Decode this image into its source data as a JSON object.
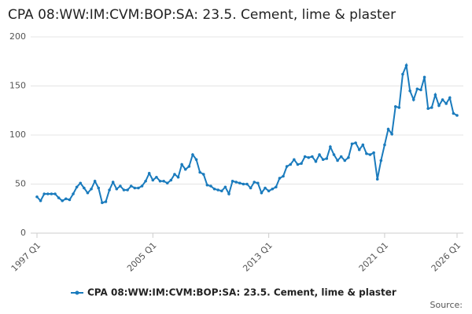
{
  "chart_data": {
    "type": "line",
    "title": "CPA 08:WW:IM:CVM:BOP:SA: 23.5. Cement, lime & plaster",
    "source": "Source:",
    "categories": [
      "1997 Q1",
      null,
      null,
      null,
      null,
      null,
      null,
      null,
      null,
      null,
      null,
      null,
      null,
      null,
      null,
      null,
      null,
      null,
      null,
      null,
      null,
      null,
      null,
      null,
      null,
      null,
      null,
      null,
      null,
      null,
      null,
      null,
      "2005 Q1",
      null,
      null,
      null,
      null,
      null,
      null,
      null,
      null,
      null,
      null,
      null,
      null,
      null,
      null,
      null,
      null,
      null,
      null,
      null,
      null,
      null,
      null,
      null,
      null,
      null,
      null,
      null,
      null,
      null,
      null,
      null,
      "2013 Q1",
      null,
      null,
      null,
      null,
      null,
      null,
      null,
      null,
      null,
      null,
      null,
      null,
      null,
      null,
      null,
      null,
      null,
      null,
      null,
      null,
      null,
      null,
      null,
      null,
      null,
      null,
      null,
      null,
      null,
      null,
      null,
      "2021 Q1",
      null,
      null,
      null,
      null,
      null,
      null,
      null,
      null,
      null,
      null,
      null,
      null,
      null,
      null,
      null,
      null,
      null,
      null,
      null,
      "2026 Q1"
    ],
    "series": [
      {
        "name": "CPA 08:WW:IM:CVM:BOP:SA: 23.5. Cement, lime & plaster",
        "color": "#1a7bbd",
        "values": [
          37,
          33,
          40,
          40,
          40,
          40,
          36,
          33,
          35,
          34,
          40,
          47,
          51,
          46,
          41,
          45,
          53,
          46,
          31,
          32,
          44,
          52,
          45,
          48,
          44,
          44,
          48,
          46,
          46,
          48,
          53,
          61,
          54,
          57,
          53,
          53,
          51,
          54,
          60,
          57,
          70,
          65,
          68,
          80,
          75,
          62,
          60,
          49,
          48,
          45,
          44,
          43,
          47,
          40,
          53,
          52,
          51,
          50,
          50,
          46,
          52,
          51,
          41,
          46,
          43,
          45,
          47,
          56,
          58,
          68,
          70,
          75,
          70,
          71,
          78,
          77,
          78,
          73,
          80,
          75,
          76,
          88,
          80,
          74,
          78,
          74,
          77,
          91,
          92,
          85,
          90,
          81,
          80,
          82,
          55,
          74,
          90,
          106,
          101,
          129,
          128,
          162,
          171,
          145,
          136,
          147,
          146,
          159,
          127,
          128,
          141,
          130,
          136,
          132,
          138,
          122,
          120
        ]
      }
    ],
    "ylim": [
      0,
      200
    ],
    "yticks": [
      0,
      50,
      100,
      150,
      200
    ],
    "grid": true
  }
}
